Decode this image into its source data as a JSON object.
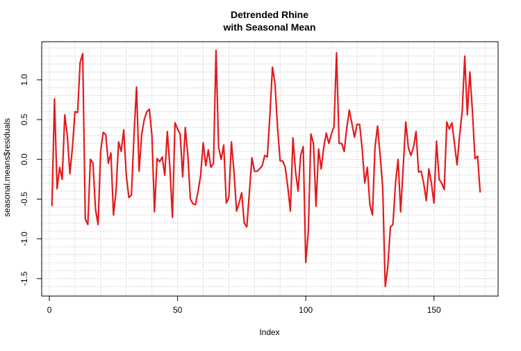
{
  "chart_data": {
    "type": "line",
    "title": "Detrended Rhine",
    "subtitle": "with Seasonal Mean",
    "xlabel": "Index",
    "ylabel": "seasonal.means$residuals",
    "xlim": [
      -3,
      175
    ],
    "ylim": [
      -1.72,
      1.48
    ],
    "x_ticks": [
      0,
      50,
      100,
      150
    ],
    "y_ticks": [
      -1.5,
      -1.0,
      -0.5,
      0.0,
      0.5,
      1.0
    ],
    "y_tick_labels": [
      "-1.5",
      "-1.0",
      "-0.5",
      "0.0",
      "0.5",
      "1.0"
    ],
    "grid": true,
    "line_color": "#e31a1c",
    "series": [
      {
        "values": [
          -0.58,
          0.76,
          -0.37,
          -0.1,
          -0.25,
          0.56,
          0.3,
          -0.18,
          0.15,
          0.6,
          0.59,
          1.22,
          1.33,
          -0.75,
          -0.82,
          0.0,
          -0.05,
          -0.63,
          -0.82,
          0.1,
          0.34,
          0.31,
          -0.05,
          0.08,
          -0.7,
          -0.4,
          0.22,
          0.1,
          0.37,
          -0.2,
          -0.48,
          -0.45,
          0.3,
          0.91,
          -0.15,
          0.31,
          0.5,
          0.6,
          0.63,
          0.3,
          -0.66,
          0.01,
          -0.03,
          0.03,
          -0.2,
          0.35,
          -0.1,
          -0.73,
          0.46,
          0.38,
          0.32,
          -0.22,
          0.4,
          0.05,
          -0.5,
          -0.56,
          -0.57,
          -0.4,
          -0.2,
          0.21,
          -0.08,
          0.12,
          -0.1,
          -0.05,
          1.37,
          0.15,
          0.0,
          0.18,
          -0.55,
          -0.48,
          0.22,
          -0.15,
          -0.65,
          -0.55,
          -0.42,
          -0.8,
          -0.85,
          -0.42,
          0.02,
          -0.15,
          -0.15,
          -0.12,
          -0.08,
          0.05,
          0.03,
          0.55,
          1.16,
          0.95,
          0.4,
          -0.02,
          -0.02,
          -0.1,
          -0.35,
          -0.65,
          0.27,
          -0.15,
          -0.4,
          0.05,
          0.16,
          -1.3,
          -0.9,
          0.32,
          0.2,
          -0.59,
          0.13,
          -0.12,
          0.15,
          0.33,
          0.2,
          0.32,
          0.41,
          1.34,
          0.2,
          0.2,
          0.1,
          0.4,
          0.62,
          0.45,
          0.28,
          0.44,
          0.44,
          0.13,
          -0.3,
          -0.1,
          -0.57,
          -0.7,
          0.15,
          0.42,
          0.05,
          -0.35,
          -1.6,
          -1.35,
          -0.85,
          -0.82,
          -0.3,
          0.0,
          -0.66,
          -0.1,
          0.47,
          0.15,
          0.05,
          0.15,
          0.35,
          -0.16,
          -0.15,
          -0.3,
          -0.52,
          -0.12,
          -0.3,
          -0.55,
          0.23,
          -0.25,
          -0.3,
          -0.38,
          0.47,
          0.38,
          0.46,
          0.2,
          -0.07,
          0.3,
          0.6,
          1.3,
          0.56,
          1.1,
          0.6,
          0.01,
          0.04,
          -0.41
        ]
      }
    ]
  }
}
